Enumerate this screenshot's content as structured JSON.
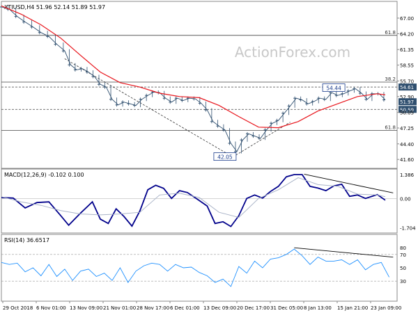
{
  "watermark": "ActionForex.com",
  "colors": {
    "price": "#2f4f6f",
    "sma": "#e8141b",
    "macd": "#00008b",
    "signal": "#aab4c8",
    "rsi": "#1e90ff",
    "hline": "#444444",
    "current_bg": "#2f4f6f",
    "level_bg": "#2f4f6f"
  },
  "chart_data": [
    {
      "type": "candlestick",
      "title": "XTIUSD,H4  51.96 52.14 51.89 51.97",
      "ylim": [
        40.0,
        70.0
      ],
      "y_ticks": [
        "67.00",
        "64.20",
        "61.35",
        "58.55",
        "55.70",
        "52.90",
        "50.05",
        "47.25",
        "44.40",
        "41.60"
      ],
      "y_tick_values": [
        67.0,
        64.2,
        61.35,
        58.55,
        55.7,
        52.9,
        50.05,
        47.25,
        44.4,
        41.6
      ],
      "x_tick_labels": [
        "29 Oct 2018",
        "6 Nov 01:00",
        "13 Nov 09:00",
        "21 Nov 01:00",
        "28 Nov 17:00",
        "6 Dec 01:00",
        "13 Dec 09:00",
        "20 Dec 17:00",
        "31 Dec 05:00",
        "8 Jan 13:00",
        "15 Jan 21:00",
        "23 Jan 09:00"
      ],
      "current_price": "51.97",
      "levels": [
        {
          "label": "61.8",
          "value": 63.9,
          "style": "solid"
        },
        {
          "label": "38.2",
          "value": 55.5,
          "style": "solid"
        },
        {
          "label": "61.8",
          "value": 46.8,
          "style": "solid"
        },
        {
          "label": "54.61",
          "value": 54.61,
          "style": "dashed"
        },
        {
          "label": "50.59",
          "value": 50.59,
          "style": "dashed"
        }
      ],
      "annotations": [
        {
          "text": "54.44",
          "x": 0.84,
          "y": 54.44
        },
        {
          "text": "42.05",
          "x": 0.565,
          "y": 42.05
        }
      ],
      "trendlines": [
        {
          "from": [
            0.16,
            59.7
          ],
          "to": [
            0.585,
            42.05
          ],
          "style": "dashed"
        },
        {
          "from": [
            0.585,
            42.05
          ],
          "to": [
            0.73,
            48.3
          ],
          "style": "dashed"
        }
      ],
      "close_path": [
        [
          0.0,
          69.0
        ],
        [
          0.02,
          68.6
        ],
        [
          0.04,
          67.3
        ],
        [
          0.06,
          66.3
        ],
        [
          0.08,
          65.4
        ],
        [
          0.1,
          64.4
        ],
        [
          0.12,
          63.7
        ],
        [
          0.14,
          62.3
        ],
        [
          0.16,
          61.1
        ],
        [
          0.175,
          58.6
        ],
        [
          0.19,
          57.7
        ],
        [
          0.205,
          57.9
        ],
        [
          0.22,
          57.3
        ],
        [
          0.235,
          56.5
        ],
        [
          0.25,
          55.1
        ],
        [
          0.265,
          54.6
        ],
        [
          0.28,
          52.4
        ],
        [
          0.295,
          51.4
        ],
        [
          0.31,
          51.9
        ],
        [
          0.325,
          51.6
        ],
        [
          0.34,
          51.3
        ],
        [
          0.355,
          52.4
        ],
        [
          0.37,
          53.1
        ],
        [
          0.385,
          53.7
        ],
        [
          0.4,
          53.6
        ],
        [
          0.415,
          52.6
        ],
        [
          0.43,
          51.9
        ],
        [
          0.445,
          52.6
        ],
        [
          0.46,
          52.2
        ],
        [
          0.475,
          52.6
        ],
        [
          0.49,
          52.5
        ],
        [
          0.505,
          51.7
        ],
        [
          0.52,
          50.5
        ],
        [
          0.535,
          48.4
        ],
        [
          0.55,
          47.6
        ],
        [
          0.565,
          46.9
        ],
        [
          0.58,
          44.5
        ],
        [
          0.595,
          43.0
        ],
        [
          0.61,
          45.1
        ],
        [
          0.625,
          46.2
        ],
        [
          0.64,
          45.8
        ],
        [
          0.655,
          45.4
        ],
        [
          0.67,
          46.9
        ],
        [
          0.685,
          48.1
        ],
        [
          0.7,
          48.6
        ],
        [
          0.715,
          49.9
        ],
        [
          0.73,
          51.2
        ],
        [
          0.745,
          52.6
        ],
        [
          0.76,
          52.3
        ],
        [
          0.775,
          51.6
        ],
        [
          0.79,
          52.0
        ],
        [
          0.805,
          52.6
        ],
        [
          0.82,
          52.4
        ],
        [
          0.835,
          53.6
        ],
        [
          0.85,
          53.1
        ],
        [
          0.865,
          53.4
        ],
        [
          0.88,
          53.9
        ],
        [
          0.895,
          54.3
        ],
        [
          0.91,
          53.5
        ],
        [
          0.925,
          52.4
        ],
        [
          0.94,
          53.4
        ],
        [
          0.955,
          53.4
        ],
        [
          0.97,
          52.3
        ]
      ],
      "sma_path": [
        [
          0.0,
          69.2
        ],
        [
          0.05,
          67.7
        ],
        [
          0.1,
          65.8
        ],
        [
          0.15,
          63.4
        ],
        [
          0.2,
          60.3
        ],
        [
          0.25,
          57.3
        ],
        [
          0.3,
          55.4
        ],
        [
          0.35,
          54.6
        ],
        [
          0.4,
          53.5
        ],
        [
          0.45,
          52.9
        ],
        [
          0.5,
          52.7
        ],
        [
          0.55,
          51.3
        ],
        [
          0.6,
          49.3
        ],
        [
          0.65,
          47.4
        ],
        [
          0.7,
          47.3
        ],
        [
          0.75,
          48.4
        ],
        [
          0.8,
          50.3
        ],
        [
          0.85,
          51.6
        ],
        [
          0.9,
          52.9
        ],
        [
          0.95,
          53.4
        ],
        [
          0.97,
          53.2
        ]
      ]
    },
    {
      "type": "line",
      "title": "MACD(12,26,9) -0.102 0.100",
      "ylim": [
        -2.0,
        1.7
      ],
      "y_ticks": [
        "1.386",
        "0.00",
        "-1.704"
      ],
      "y_tick_values": [
        1.386,
        0.0,
        -1.704
      ],
      "series": [
        {
          "role": "macd",
          "points": [
            [
              0.0,
              0.05
            ],
            [
              0.03,
              0.02
            ],
            [
              0.06,
              -0.55
            ],
            [
              0.09,
              -0.24
            ],
            [
              0.12,
              -0.2
            ],
            [
              0.15,
              -1.0
            ],
            [
              0.17,
              -1.55
            ],
            [
              0.2,
              -0.85
            ],
            [
              0.23,
              -0.2
            ],
            [
              0.25,
              -1.2
            ],
            [
              0.27,
              -1.45
            ],
            [
              0.29,
              -0.6
            ],
            [
              0.31,
              -1.05
            ],
            [
              0.33,
              -1.6
            ],
            [
              0.35,
              -0.72
            ],
            [
              0.37,
              0.5
            ],
            [
              0.39,
              0.76
            ],
            [
              0.41,
              0.58
            ],
            [
              0.43,
              0.0
            ],
            [
              0.45,
              0.45
            ],
            [
              0.47,
              0.34
            ],
            [
              0.5,
              -0.12
            ],
            [
              0.52,
              -0.44
            ],
            [
              0.54,
              -1.45
            ],
            [
              0.56,
              -1.35
            ],
            [
              0.58,
              -1.62
            ],
            [
              0.6,
              -1.0
            ],
            [
              0.62,
              0.0
            ],
            [
              0.64,
              0.2
            ],
            [
              0.66,
              0.02
            ],
            [
              0.68,
              0.4
            ],
            [
              0.7,
              0.7
            ],
            [
              0.72,
              1.25
            ],
            [
              0.74,
              1.38
            ],
            [
              0.76,
              1.38
            ],
            [
              0.78,
              0.7
            ],
            [
              0.8,
              0.6
            ],
            [
              0.82,
              0.45
            ],
            [
              0.84,
              0.72
            ],
            [
              0.86,
              0.82
            ],
            [
              0.88,
              0.12
            ],
            [
              0.9,
              0.2
            ],
            [
              0.92,
              0.0
            ],
            [
              0.95,
              0.22
            ],
            [
              0.97,
              -0.1
            ]
          ]
        },
        {
          "role": "signal",
          "points": [
            [
              0.0,
              0.1
            ],
            [
              0.05,
              -0.2
            ],
            [
              0.1,
              -0.4
            ],
            [
              0.15,
              -0.7
            ],
            [
              0.2,
              -0.9
            ],
            [
              0.25,
              -0.95
            ],
            [
              0.3,
              -0.9
            ],
            [
              0.35,
              -0.8
            ],
            [
              0.4,
              0.2
            ],
            [
              0.45,
              0.3
            ],
            [
              0.5,
              0.05
            ],
            [
              0.55,
              -0.8
            ],
            [
              0.6,
              -1.1
            ],
            [
              0.65,
              0.0
            ],
            [
              0.7,
              0.5
            ],
            [
              0.75,
              1.2
            ],
            [
              0.8,
              0.8
            ],
            [
              0.85,
              0.7
            ],
            [
              0.9,
              0.25
            ],
            [
              0.95,
              0.2
            ],
            [
              0.97,
              0.1
            ]
          ]
        }
      ],
      "trendline": {
        "from": [
          0.765,
          1.4
        ],
        "to": [
          0.99,
          0.32
        ]
      }
    },
    {
      "type": "line",
      "title": "RSI(14) 36.6517",
      "ylim": [
        0,
        100
      ],
      "y_ticks": [
        "80",
        "70",
        "50",
        "30"
      ],
      "y_tick_values": [
        80,
        70,
        50,
        30
      ],
      "series": [
        {
          "role": "rsi",
          "points": [
            [
              0.0,
              58
            ],
            [
              0.02,
              55
            ],
            [
              0.04,
              57
            ],
            [
              0.06,
              44
            ],
            [
              0.08,
              50
            ],
            [
              0.1,
              38
            ],
            [
              0.12,
              55
            ],
            [
              0.14,
              37
            ],
            [
              0.16,
              48
            ],
            [
              0.18,
              31
            ],
            [
              0.2,
              45
            ],
            [
              0.22,
              48
            ],
            [
              0.24,
              37
            ],
            [
              0.26,
              42
            ],
            [
              0.28,
              31
            ],
            [
              0.3,
              50
            ],
            [
              0.32,
              28
            ],
            [
              0.34,
              45
            ],
            [
              0.36,
              53
            ],
            [
              0.38,
              57
            ],
            [
              0.4,
              55
            ],
            [
              0.42,
              45
            ],
            [
              0.44,
              55
            ],
            [
              0.46,
              50
            ],
            [
              0.48,
              51
            ],
            [
              0.5,
              43
            ],
            [
              0.52,
              38
            ],
            [
              0.54,
              28
            ],
            [
              0.56,
              33
            ],
            [
              0.58,
              22
            ],
            [
              0.6,
              52
            ],
            [
              0.62,
              42
            ],
            [
              0.64,
              60
            ],
            [
              0.66,
              50
            ],
            [
              0.68,
              63
            ],
            [
              0.7,
              65
            ],
            [
              0.72,
              70
            ],
            [
              0.74,
              78
            ],
            [
              0.76,
              68
            ],
            [
              0.78,
              55
            ],
            [
              0.8,
              66
            ],
            [
              0.82,
              60
            ],
            [
              0.84,
              60
            ],
            [
              0.86,
              62
            ],
            [
              0.88,
              55
            ],
            [
              0.9,
              62
            ],
            [
              0.92,
              47
            ],
            [
              0.94,
              55
            ],
            [
              0.96,
              58
            ],
            [
              0.98,
              36
            ]
          ]
        }
      ],
      "trendline": {
        "from": [
          0.74,
          80
        ],
        "to": [
          0.99,
          66
        ]
      }
    }
  ]
}
